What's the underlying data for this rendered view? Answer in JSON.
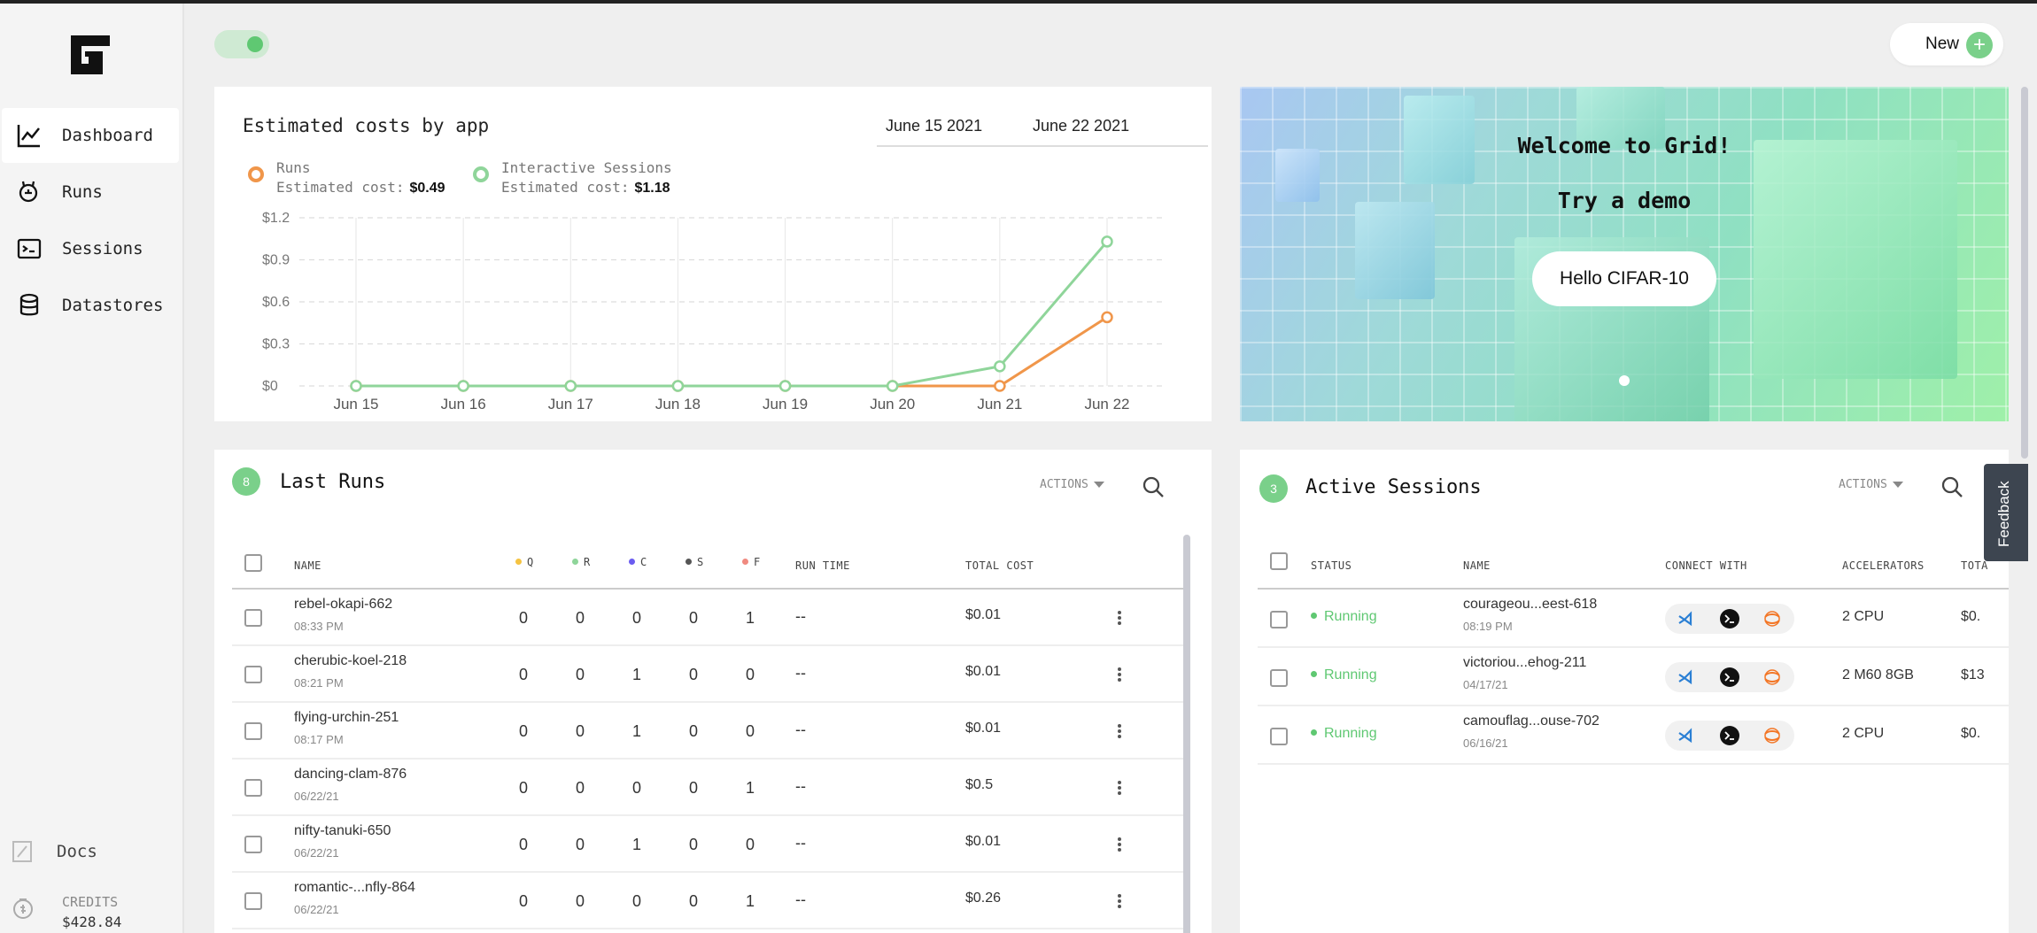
{
  "sidebar": {
    "items": [
      {
        "label": "Dashboard",
        "icon": "chart-line-icon"
      },
      {
        "label": "Runs",
        "icon": "runs-icon"
      },
      {
        "label": "Sessions",
        "icon": "sessions-icon"
      },
      {
        "label": "Datastores",
        "icon": "database-icon"
      }
    ],
    "docs_label": "Docs",
    "credits_label": "CREDITS",
    "credits_value": "$428.84"
  },
  "header": {
    "new_label": "New",
    "new_icon": "+"
  },
  "cost_card": {
    "title": "Estimated costs by app",
    "date_from": "June 15 2021",
    "date_to": "June 22 2021",
    "legend": [
      {
        "name": "Runs",
        "cost_label": "Estimated cost:",
        "cost": "$0.49",
        "color": "#f0964a"
      },
      {
        "name": "Interactive Sessions",
        "cost_label": "Estimated cost:",
        "cost": "$1.18",
        "color": "#8fd59a"
      }
    ]
  },
  "chart_data": {
    "type": "line",
    "x": [
      "Jun 15",
      "Jun 16",
      "Jun 17",
      "Jun 18",
      "Jun 19",
      "Jun 20",
      "Jun 21",
      "Jun 22"
    ],
    "y_ticks": [
      "$0",
      "$0.3",
      "$0.6",
      "$0.9",
      "$1.2"
    ],
    "ylim": [
      0,
      1.2
    ],
    "grid": true,
    "series": [
      {
        "name": "Runs",
        "color": "#f0964a",
        "values": [
          0,
          0,
          0,
          0,
          0,
          0,
          0,
          0.49
        ]
      },
      {
        "name": "Interactive Sessions",
        "color": "#8fd59a",
        "values": [
          0,
          0,
          0,
          0,
          0,
          0,
          0.14,
          1.03
        ]
      }
    ]
  },
  "banner": {
    "line1": "Welcome to Grid!",
    "line2": "Try a demo",
    "button": "Hello CIFAR-10"
  },
  "runs": {
    "title": "Last Runs",
    "count": "8",
    "actions_label": "ACTIONS",
    "columns": {
      "name": "NAME",
      "q": "Q",
      "r": "R",
      "c": "C",
      "s": "S",
      "f": "F",
      "run_time": "RUN TIME",
      "total_cost": "TOTAL COST"
    },
    "status_colors": {
      "q": "#f5c342",
      "r": "#8fd59a",
      "c": "#6b5cf0",
      "s": "#555555",
      "f": "#f08a80"
    },
    "rows": [
      {
        "name": "rebel-okapi-662",
        "time": "08:33 PM",
        "q": "0",
        "r": "0",
        "c": "0",
        "s": "0",
        "f": "1",
        "run_time": "--",
        "cost": "$0.01"
      },
      {
        "name": "cherubic-koel-218",
        "time": "08:21 PM",
        "q": "0",
        "r": "0",
        "c": "1",
        "s": "0",
        "f": "0",
        "run_time": "--",
        "cost": "$0.01"
      },
      {
        "name": "flying-urchin-251",
        "time": "08:17 PM",
        "q": "0",
        "r": "0",
        "c": "1",
        "s": "0",
        "f": "0",
        "run_time": "--",
        "cost": "$0.01"
      },
      {
        "name": "dancing-clam-876",
        "time": "06/22/21",
        "q": "0",
        "r": "0",
        "c": "0",
        "s": "0",
        "f": "1",
        "run_time": "--",
        "cost": "$0.5"
      },
      {
        "name": "nifty-tanuki-650",
        "time": "06/22/21",
        "q": "0",
        "r": "0",
        "c": "1",
        "s": "0",
        "f": "0",
        "run_time": "--",
        "cost": "$0.01"
      },
      {
        "name": "romantic-...nfly-864",
        "time": "06/22/21",
        "q": "0",
        "r": "0",
        "c": "0",
        "s": "0",
        "f": "1",
        "run_time": "--",
        "cost": "$0.26"
      }
    ]
  },
  "sessions": {
    "title": "Active Sessions",
    "count": "3",
    "actions_label": "ACTIONS",
    "columns": {
      "status": "STATUS",
      "name": "NAME",
      "connect": "CONNECT WITH",
      "accelerators": "ACCELERATORS",
      "total": "TOTA"
    },
    "rows": [
      {
        "status": "Running",
        "name": "courageou...eest-618",
        "time": "08:19 PM",
        "accelerators": "2 CPU",
        "total": "$0."
      },
      {
        "status": "Running",
        "name": "victoriou...ehog-211",
        "time": "04/17/21",
        "accelerators": "2 M60 8GB",
        "total": "$13"
      },
      {
        "status": "Running",
        "name": "camouflag...ouse-702",
        "time": "06/16/21",
        "accelerators": "2 CPU",
        "total": "$0."
      }
    ]
  },
  "feedback_label": "Feedback"
}
